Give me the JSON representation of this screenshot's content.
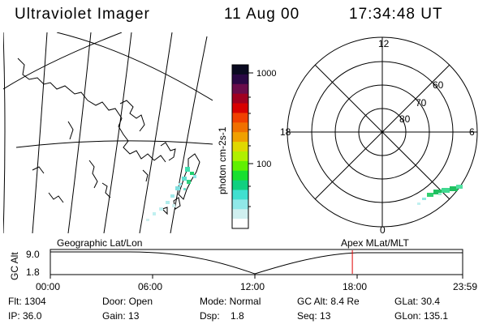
{
  "header": {
    "title": "Ultraviolet Imager",
    "date": "11 Aug 00",
    "time": "17:34:48 UT"
  },
  "colorbar": {
    "label": "photon cm-2s-1",
    "ticks": [
      "1000",
      "100"
    ],
    "colors": [
      "#0a0a20",
      "#2a0844",
      "#6a0c4a",
      "#a00020",
      "#d80000",
      "#f04000",
      "#f07000",
      "#f0a000",
      "#e0d800",
      "#b0f000",
      "#60f000",
      "#18e030",
      "#10d080",
      "#40e0d0",
      "#90e8e8",
      "#d0f0f0",
      "#ffffff"
    ]
  },
  "polar": {
    "mlt_labels": {
      "top": "12",
      "left": "18",
      "right": "6",
      "bottom": "0"
    },
    "lat_labels": [
      "60",
      "70",
      "80"
    ]
  },
  "timeline": {
    "left_title": "Geographic Lat/Lon",
    "right_title": "Apex MLat/MLT",
    "axis_label": "GC Alt",
    "y_ticks": [
      "9.0",
      "1.8"
    ],
    "x_ticks": [
      "00:00",
      "06:00",
      "12:00",
      "18:00",
      "23:59"
    ],
    "current_fraction": 0.7325,
    "marker_color": "#e00000"
  },
  "info": {
    "row1": {
      "flt": "Flt: 1304",
      "door": "Door: Open",
      "mode": "Mode: Normal",
      "gcalt": "GC Alt: 8.4 Re",
      "glat": "GLat: 30.4"
    },
    "row2": {
      "ip": "IP: 36.0",
      "gain": "Gain: 13",
      "dsp": "Dsp:    1.8",
      "seq": "Seq: 13",
      "glon": "GLon: 135.1"
    }
  }
}
